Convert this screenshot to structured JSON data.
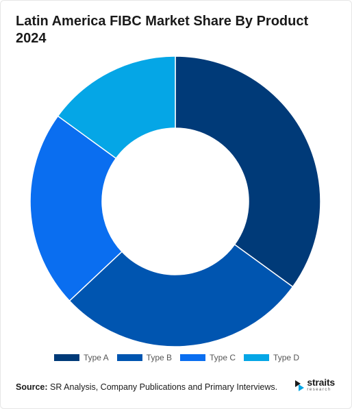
{
  "title": "Latin America FIBC Market Share By Product 2024",
  "chart_data": {
    "type": "pie",
    "donut": true,
    "title": "Latin America FIBC Market Share By Product 2024",
    "categories": [
      "Type A",
      "Type B",
      "Type C",
      "Type D"
    ],
    "values": [
      35,
      28,
      22,
      15
    ],
    "colors": [
      "#003a78",
      "#0055b0",
      "#0a6ef0",
      "#05a6e6"
    ],
    "legend_position": "bottom"
  },
  "footer": {
    "source_label": "Source:",
    "source_text": "SR Analysis, Company Publications and Primary Interviews."
  },
  "logo": {
    "name": "straits",
    "sub": "research",
    "icon": "straits-logo-icon"
  }
}
